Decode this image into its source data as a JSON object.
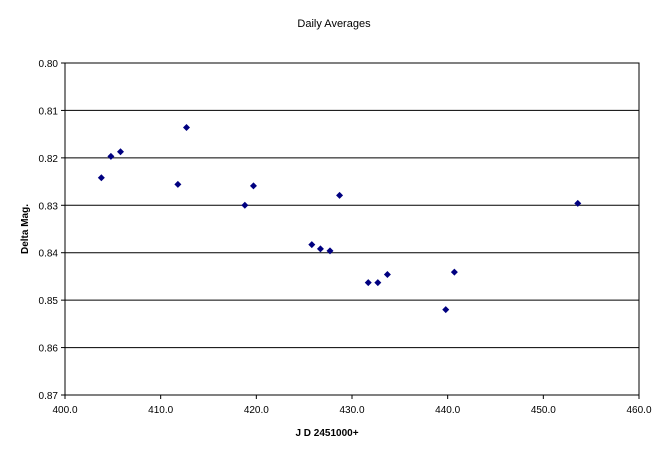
{
  "chart_data": {
    "type": "scatter",
    "title": "Daily Averages",
    "xlabel": "J D 2451000+",
    "ylabel": "Delta Mag.",
    "xlim": [
      400.0,
      460.0
    ],
    "ylim": [
      0.8,
      0.87
    ],
    "y_reversed": true,
    "grid": "horizontal",
    "legend": "none",
    "marker": "diamond",
    "marker_color": "#000080",
    "xticks": [
      "400.0",
      "410.0",
      "420.0",
      "430.0",
      "440.0",
      "450.0",
      "460.0"
    ],
    "yticks": [
      "0.80",
      "0.81",
      "0.82",
      "0.83",
      "0.84",
      "0.85",
      "0.86",
      "0.87"
    ],
    "points": [
      {
        "x": 403.8,
        "y": 0.8242
      },
      {
        "x": 404.8,
        "y": 0.8197
      },
      {
        "x": 405.8,
        "y": 0.8187
      },
      {
        "x": 411.8,
        "y": 0.8256
      },
      {
        "x": 412.7,
        "y": 0.8136
      },
      {
        "x": 418.8,
        "y": 0.83
      },
      {
        "x": 419.7,
        "y": 0.8259
      },
      {
        "x": 425.8,
        "y": 0.8383
      },
      {
        "x": 426.7,
        "y": 0.8392
      },
      {
        "x": 427.7,
        "y": 0.8396
      },
      {
        "x": 428.7,
        "y": 0.8279
      },
      {
        "x": 431.7,
        "y": 0.8463
      },
      {
        "x": 432.7,
        "y": 0.8463
      },
      {
        "x": 433.7,
        "y": 0.8446
      },
      {
        "x": 439.8,
        "y": 0.852
      },
      {
        "x": 440.7,
        "y": 0.8441
      },
      {
        "x": 453.6,
        "y": 0.8296
      }
    ]
  }
}
